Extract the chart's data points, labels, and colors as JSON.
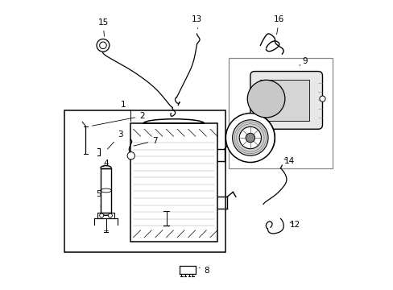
{
  "bg_color": "#ffffff",
  "line_color": "#000000",
  "fig_width": 4.89,
  "fig_height": 3.6,
  "dpi": 100,
  "font_size": 7.5,
  "label_positions": {
    "15": [
      0.275,
      0.895,
      0.24,
      0.87
    ],
    "13": [
      0.51,
      0.9,
      0.515,
      0.875
    ],
    "16": [
      0.785,
      0.905,
      0.78,
      0.885
    ],
    "9": [
      0.87,
      0.77,
      0.855,
      0.755
    ],
    "10": [
      0.71,
      0.555,
      0.73,
      0.575
    ],
    "11": [
      0.835,
      0.635,
      0.82,
      0.65
    ],
    "1": [
      0.26,
      0.595,
      0.275,
      0.575
    ],
    "2": [
      0.32,
      0.565,
      0.3,
      0.555
    ],
    "3": [
      0.255,
      0.5,
      0.27,
      0.475
    ],
    "4": [
      0.21,
      0.41,
      0.235,
      0.415
    ],
    "5": [
      0.185,
      0.315,
      0.215,
      0.315
    ],
    "6": [
      0.19,
      0.27,
      0.215,
      0.265
    ],
    "7": [
      0.38,
      0.485,
      0.375,
      0.465
    ],
    "8": [
      0.53,
      0.065,
      0.505,
      0.08
    ],
    "14": [
      0.8,
      0.44,
      0.785,
      0.46
    ],
    "12": [
      0.83,
      0.225,
      0.81,
      0.245
    ]
  }
}
